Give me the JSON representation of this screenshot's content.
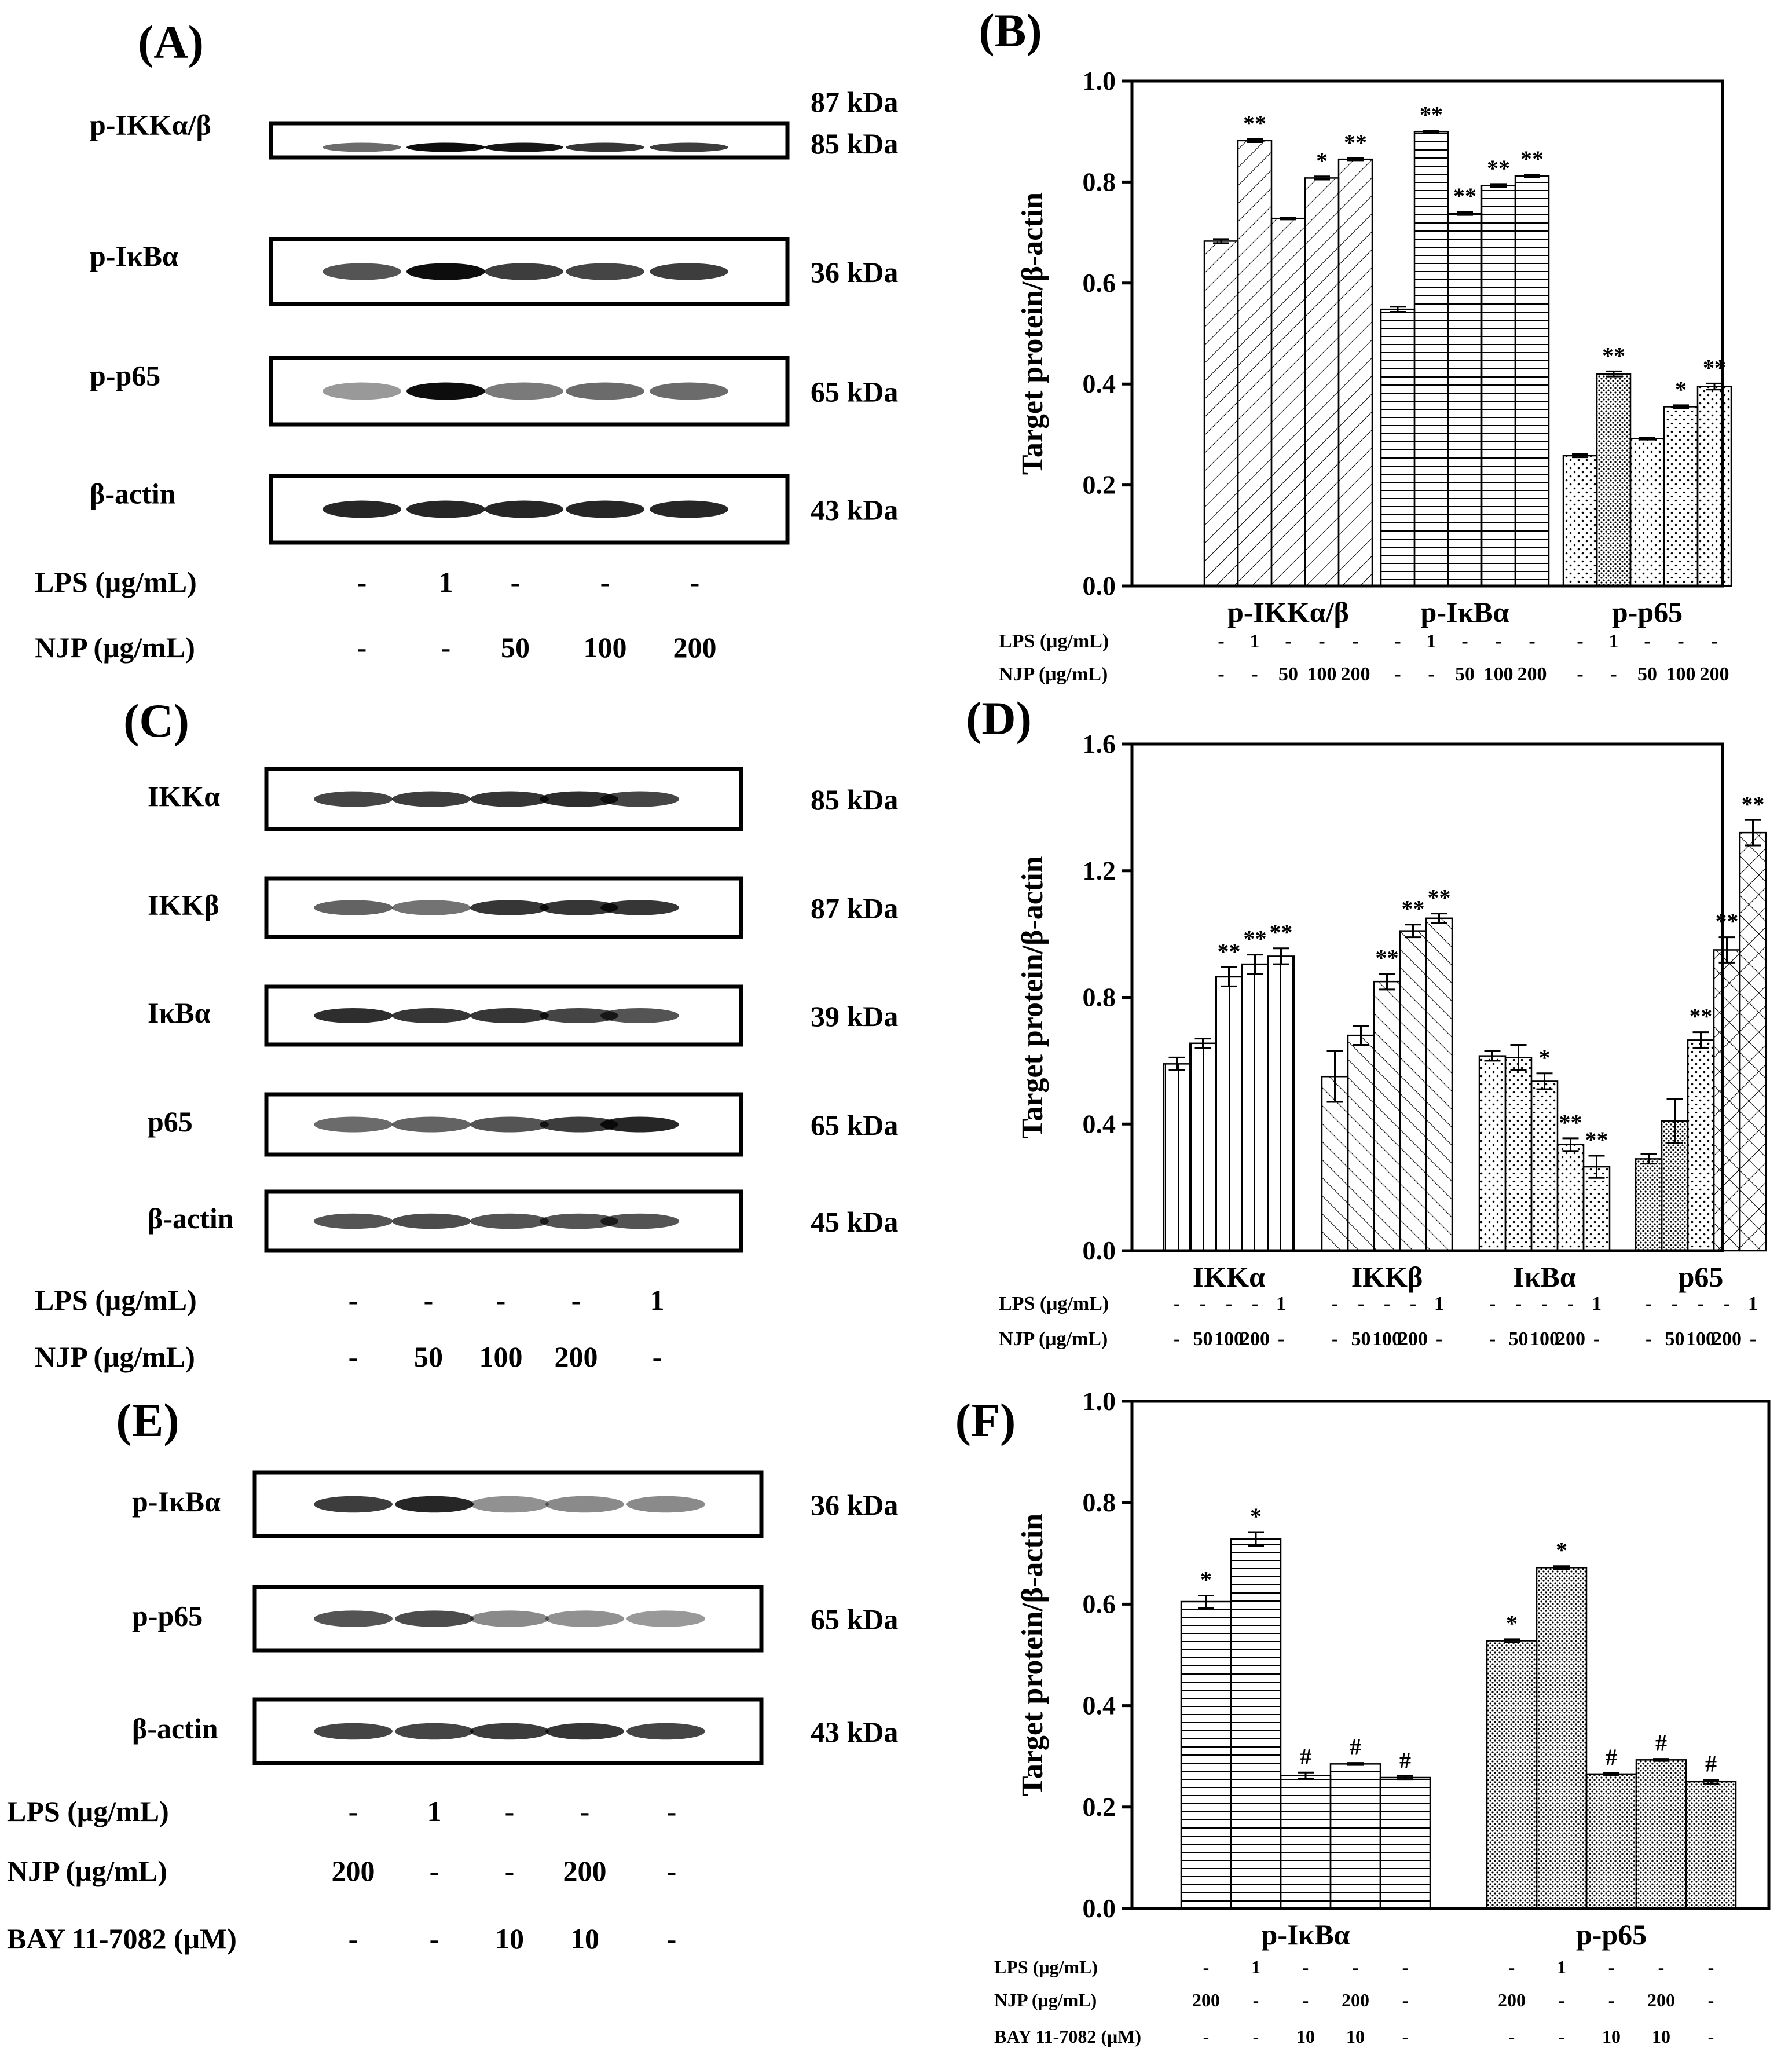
{
  "panels": {
    "A": {
      "label": "(A)",
      "proteins": [
        "p-IKKα/β",
        "p-IκBα",
        "p-p65",
        "β-actin"
      ],
      "kda": [
        [
          "87 kDa",
          "85 kDa"
        ],
        [
          "36 kDa"
        ],
        [
          "65 kDa"
        ],
        [
          "43 kDa"
        ]
      ],
      "conditions": [
        {
          "label": "LPS (μg/mL)",
          "values": [
            "-",
            "1",
            "-",
            "-",
            "-"
          ]
        },
        {
          "label": "NJP (μg/mL)",
          "values": [
            "-",
            "-",
            "50",
            "100",
            "200"
          ]
        }
      ]
    },
    "C": {
      "label": "(C)",
      "proteins": [
        "IKKα",
        "IKKβ",
        "IκBα",
        "p65",
        "β-actin"
      ],
      "kda": [
        [
          "85 kDa"
        ],
        [
          "87 kDa"
        ],
        [
          "39 kDa"
        ],
        [
          "65 kDa"
        ],
        [
          "45 kDa"
        ]
      ],
      "conditions": [
        {
          "label": "LPS (μg/mL)",
          "values": [
            "-",
            "-",
            "-",
            "-",
            "1"
          ]
        },
        {
          "label": "NJP (μg/mL)",
          "values": [
            "-",
            "50",
            "100",
            "200",
            "-"
          ]
        }
      ]
    },
    "E": {
      "label": "(E)",
      "proteins": [
        "p-IκBα",
        "p-p65",
        "β-actin"
      ],
      "kda": [
        [
          "36 kDa"
        ],
        [
          "65 kDa"
        ],
        [
          "43 kDa"
        ]
      ],
      "conditions": [
        {
          "label": "LPS (μg/mL)",
          "values": [
            "-",
            "1",
            "-",
            "-",
            "-"
          ]
        },
        {
          "label": "NJP (μg/mL)",
          "values": [
            "200",
            "-",
            "-",
            "200",
            "-"
          ]
        },
        {
          "label": "BAY 11-7082 (μM)",
          "values": [
            "-",
            "-",
            "10",
            "10",
            "-"
          ]
        }
      ]
    }
  },
  "chart_data": [
    {
      "panel": "(B)",
      "type": "bar",
      "ylabel": "Target protein/β-actin",
      "ylim": [
        0,
        1.0
      ],
      "yticks": [
        "0.0",
        "0.2",
        "0.4",
        "0.6",
        "0.8",
        "1.0"
      ],
      "groups": [
        {
          "name": "p-IKKα/β",
          "values": [
            0.683,
            0.882,
            0.728,
            0.808,
            0.845
          ],
          "errors": [
            0.004,
            0.003,
            0.002,
            0.003,
            0.002
          ],
          "sig": [
            "",
            "**",
            "",
            "*",
            "**"
          ]
        },
        {
          "name": "p-IκBα",
          "values": [
            0.548,
            0.9,
            0.738,
            0.793,
            0.812
          ],
          "errors": [
            0.005,
            0.002,
            0.003,
            0.003,
            0.002
          ],
          "sig": [
            "",
            "**",
            "**",
            "**",
            "**"
          ]
        },
        {
          "name": "p-p65",
          "values": [
            0.258,
            0.42,
            0.292,
            0.355,
            0.395
          ],
          "errors": [
            0.003,
            0.005,
            0.002,
            0.003,
            0.006
          ],
          "sig": [
            "",
            "**",
            "",
            "*",
            "**"
          ]
        }
      ],
      "conditions": [
        {
          "label": "LPS (μg/mL)",
          "values": [
            "-",
            "1",
            "-",
            "-",
            "-"
          ]
        },
        {
          "label": "NJP (μg/mL)",
          "values": [
            "-",
            "-",
            "50",
            "100",
            "200"
          ]
        }
      ]
    },
    {
      "panel": "(D)",
      "type": "bar",
      "ylabel": "Target protein/β-actin",
      "ylim": [
        0,
        1.6
      ],
      "yticks": [
        "0.0",
        "0.4",
        "0.8",
        "1.2",
        "1.6"
      ],
      "groups": [
        {
          "name": "IKKα",
          "values": [
            0.59,
            0.655,
            0.865,
            0.905,
            0.93
          ],
          "errors": [
            0.02,
            0.015,
            0.03,
            0.03,
            0.025
          ],
          "sig": [
            "",
            "",
            "**",
            "**",
            "**"
          ]
        },
        {
          "name": "IKKβ",
          "values": [
            0.55,
            0.68,
            0.85,
            1.01,
            1.05
          ],
          "errors": [
            0.08,
            0.03,
            0.025,
            0.02,
            0.015
          ],
          "sig": [
            "",
            "",
            "**",
            "**",
            "**"
          ]
        },
        {
          "name": "IκBα",
          "values": [
            0.615,
            0.61,
            0.535,
            0.335,
            0.265
          ],
          "errors": [
            0.015,
            0.04,
            0.025,
            0.02,
            0.035
          ],
          "sig": [
            "",
            "",
            "*",
            "**",
            "**"
          ]
        },
        {
          "name": "p65",
          "values": [
            0.29,
            0.41,
            0.665,
            0.95,
            1.32
          ],
          "errors": [
            0.015,
            0.07,
            0.025,
            0.04,
            0.04
          ],
          "sig": [
            "",
            "",
            "**",
            "**",
            "**"
          ]
        }
      ],
      "conditions": [
        {
          "label": "LPS (μg/mL)",
          "values": [
            "-",
            "-",
            "-",
            "-",
            "1"
          ]
        },
        {
          "label": "NJP (μg/mL)",
          "values": [
            "-",
            "50",
            "100",
            "200",
            "-"
          ]
        }
      ]
    },
    {
      "panel": "(F)",
      "type": "bar",
      "ylabel": "Target protein/β-actin",
      "ylim": [
        0,
        1.0
      ],
      "yticks": [
        "0.0",
        "0.2",
        "0.4",
        "0.6",
        "0.8",
        "1.0"
      ],
      "groups": [
        {
          "name": "p-IκBα",
          "values": [
            0.605,
            0.728,
            0.262,
            0.285,
            0.258
          ],
          "errors": [
            0.012,
            0.014,
            0.006,
            0.002,
            0.003
          ],
          "sig": [
            "*",
            "*",
            "#",
            "#",
            "#"
          ]
        },
        {
          "name": "p-p65",
          "values": [
            0.528,
            0.672,
            0.265,
            0.293,
            0.25
          ],
          "errors": [
            0.003,
            0.003,
            0.002,
            0.002,
            0.004
          ],
          "sig": [
            "*",
            "*",
            "#",
            "#",
            "#"
          ]
        }
      ],
      "conditions": [
        {
          "label": "LPS (μg/mL)",
          "values": [
            "-",
            "1",
            "-",
            "-",
            "-"
          ]
        },
        {
          "label": "NJP (μg/mL)",
          "values": [
            "200",
            "-",
            "-",
            "200",
            "-"
          ]
        },
        {
          "label": "BAY 11-7082 (μM)",
          "values": [
            "-",
            "-",
            "10",
            "10",
            "-"
          ]
        }
      ]
    }
  ]
}
